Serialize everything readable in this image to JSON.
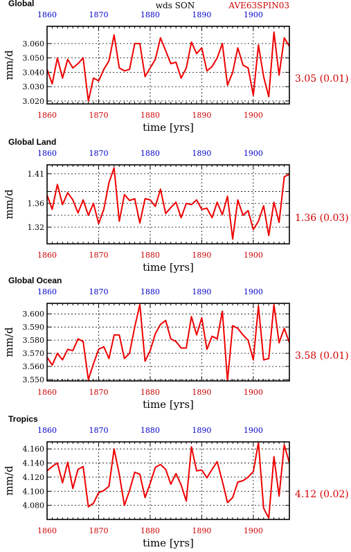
{
  "header": {
    "center": "wds SON",
    "right": "AVE63SPIN03"
  },
  "colors": {
    "series": "#ee0000",
    "top_ticks": "#0000cc",
    "bottom_ticks": "#cc0000",
    "side_text": "#d00000"
  },
  "chart_data": [
    {
      "type": "line",
      "title": "Global",
      "ylabel": "mm/d",
      "xlabel": "time [yrs]",
      "xlim": [
        1860,
        1907
      ],
      "ylim": [
        3.018,
        3.072
      ],
      "yticks": [
        3.02,
        3.03,
        3.04,
        3.05,
        3.06
      ],
      "ytick_labels": [
        "3.020",
        "3.030",
        "3.040",
        "3.050",
        "3.060"
      ],
      "xticks": [
        1860,
        1870,
        1880,
        1890,
        1900
      ],
      "xtick_labels": [
        "1860",
        "1870",
        "1880",
        "1890",
        "1900"
      ],
      "grid": true,
      "side_label": "3.05 (0.01)",
      "x_start": 1860,
      "values": [
        3.042,
        3.032,
        3.05,
        3.036,
        3.049,
        3.043,
        3.046,
        3.05,
        3.02,
        3.036,
        3.034,
        3.042,
        3.048,
        3.066,
        3.043,
        3.041,
        3.042,
        3.06,
        3.06,
        3.037,
        3.043,
        3.049,
        3.064,
        3.055,
        3.046,
        3.047,
        3.036,
        3.043,
        3.061,
        3.053,
        3.057,
        3.041,
        3.044,
        3.05,
        3.06,
        3.031,
        3.04,
        3.057,
        3.045,
        3.043,
        3.024,
        3.059,
        3.037,
        3.023,
        3.068,
        3.038,
        3.064,
        3.058
      ]
    },
    {
      "type": "line",
      "title": "Global Land",
      "ylabel": "mm/d",
      "xlabel": "time [yrs]",
      "xlim": [
        1860,
        1907
      ],
      "ylim": [
        1.292,
        1.425
      ],
      "yticks": [
        1.32,
        1.34,
        1.36,
        1.38,
        1.41
      ],
      "ytick_labels": [
        "1.32",
        "",
        "1.36",
        "",
        "1.41"
      ],
      "xticks": [
        1860,
        1870,
        1880,
        1890,
        1900
      ],
      "xtick_labels": [
        "1860",
        "1870",
        "1880",
        "1890",
        "1900"
      ],
      "grid": true,
      "side_label": "1.36 (0.03)",
      "x_start": 1860,
      "values": [
        1.374,
        1.35,
        1.392,
        1.358,
        1.378,
        1.366,
        1.344,
        1.366,
        1.34,
        1.36,
        1.326,
        1.35,
        1.395,
        1.42,
        1.33,
        1.375,
        1.365,
        1.368,
        1.327,
        1.368,
        1.366,
        1.355,
        1.384,
        1.343,
        1.353,
        1.362,
        1.336,
        1.36,
        1.358,
        1.366,
        1.35,
        1.352,
        1.336,
        1.362,
        1.341,
        1.372,
        1.3,
        1.366,
        1.34,
        1.348,
        1.316,
        1.33,
        1.356,
        1.306,
        1.362,
        1.328,
        1.405,
        1.409
      ]
    },
    {
      "type": "line",
      "title": "Global Ocean",
      "ylabel": "mm/d",
      "xlabel": "time [yrs]",
      "xlim": [
        1860,
        1907
      ],
      "ylim": [
        3.549,
        3.608
      ],
      "yticks": [
        3.55,
        3.56,
        3.57,
        3.58,
        3.59,
        3.6
      ],
      "ytick_labels": [
        "3.550",
        "3.560",
        "3.570",
        "3.580",
        "3.590",
        "3.600"
      ],
      "xticks": [
        1860,
        1870,
        1880,
        1890,
        1900
      ],
      "xtick_labels": [
        "1860",
        "1870",
        "1880",
        "1890",
        "1900"
      ],
      "grid": true,
      "side_label": "3.58 (0.01)",
      "x_start": 1860,
      "values": [
        3.567,
        3.561,
        3.57,
        3.565,
        3.573,
        3.572,
        3.581,
        3.579,
        3.55,
        3.562,
        3.573,
        3.575,
        3.566,
        3.584,
        3.584,
        3.566,
        3.57,
        3.59,
        3.607,
        3.564,
        3.572,
        3.585,
        3.592,
        3.595,
        3.581,
        3.579,
        3.574,
        3.574,
        3.598,
        3.584,
        3.597,
        3.573,
        3.583,
        3.581,
        3.602,
        3.549,
        3.591,
        3.589,
        3.584,
        3.58,
        3.565,
        3.606,
        3.565,
        3.566,
        3.607,
        3.578,
        3.589,
        3.578
      ]
    },
    {
      "type": "line",
      "title": "Tropics",
      "ylabel": "mm/d",
      "xlabel": "time [yrs]",
      "xlim": [
        1860,
        1907
      ],
      "ylim": [
        4.06,
        4.17
      ],
      "yticks": [
        4.08,
        4.1,
        4.12,
        4.14,
        4.16
      ],
      "ytick_labels": [
        "4.080",
        "4.100",
        "4.120",
        "4.140",
        "4.160"
      ],
      "xticks": [
        1860,
        1870,
        1880,
        1890,
        1900
      ],
      "xtick_labels": [
        "1860",
        "1870",
        "1880",
        "1890",
        "1900"
      ],
      "grid": true,
      "side_label": "4.12 (0.02)",
      "x_start": 1860,
      "values": [
        4.129,
        4.135,
        4.14,
        4.112,
        4.141,
        4.104,
        4.131,
        4.135,
        4.078,
        4.083,
        4.098,
        4.101,
        4.107,
        4.16,
        4.124,
        4.08,
        4.101,
        4.127,
        4.124,
        4.091,
        4.111,
        4.134,
        4.138,
        4.131,
        4.11,
        4.125,
        4.109,
        4.086,
        4.163,
        4.129,
        4.13,
        4.119,
        4.131,
        4.142,
        4.114,
        4.084,
        4.091,
        4.113,
        4.115,
        4.12,
        4.128,
        4.169,
        4.076,
        4.062,
        4.149,
        4.093,
        4.166,
        4.14
      ]
    }
  ]
}
